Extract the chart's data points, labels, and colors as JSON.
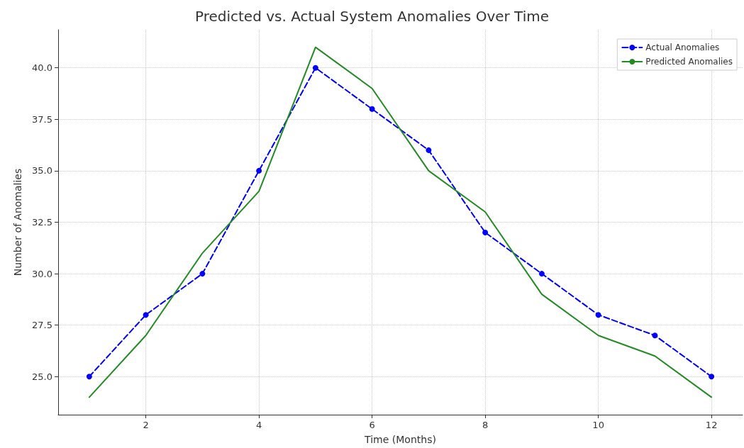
{
  "chart_data": {
    "type": "line",
    "title": "Predicted vs. Actual System Anomalies Over Time",
    "xlabel": "Time (Months)",
    "ylabel": "Number of Anomalies",
    "x": [
      1,
      2,
      3,
      4,
      5,
      6,
      7,
      8,
      9,
      10,
      11,
      12
    ],
    "series": [
      {
        "name": "Actual Anomalies",
        "color": "#0000ff",
        "marker": "circle",
        "line_style": "dashed",
        "values": [
          25,
          28,
          30,
          35,
          40,
          38,
          36,
          32,
          30,
          28,
          27,
          25
        ]
      },
      {
        "name": "Predicted Anomalies",
        "color": "#228b22",
        "marker": "none",
        "line_style": "solid",
        "values": [
          24,
          27,
          31,
          34,
          41,
          39,
          35,
          33,
          29,
          27,
          26,
          24
        ]
      }
    ],
    "xlim": [
      0.45,
      12.55
    ],
    "xticks": [
      2,
      4,
      6,
      8,
      10,
      12
    ],
    "ylim": [
      23.15,
      41.85
    ],
    "yticks": [
      {
        "value": 25,
        "label": "25.0"
      },
      {
        "value": 27.5,
        "label": "27.5"
      },
      {
        "value": 30,
        "label": "30.0"
      },
      {
        "value": 32.5,
        "label": "32.5"
      },
      {
        "value": 35,
        "label": "35.0"
      },
      {
        "value": 37.5,
        "label": "37.5"
      },
      {
        "value": 40,
        "label": "40.0"
      }
    ],
    "grid": true,
    "legend": "top right"
  }
}
